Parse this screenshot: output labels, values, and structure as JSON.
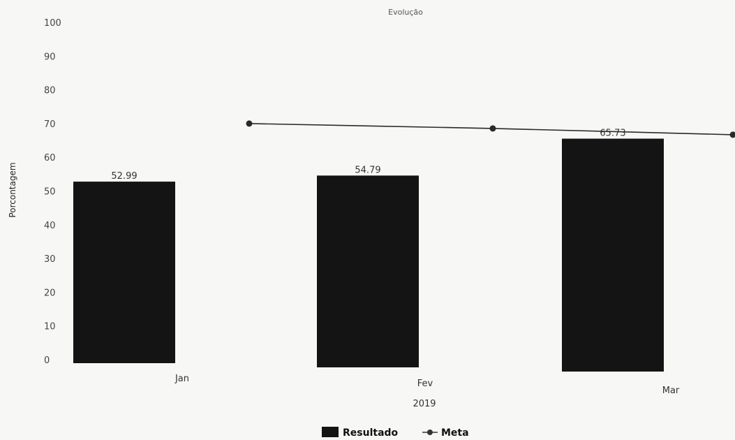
{
  "chart_data": {
    "type": "bar",
    "title": "Evolução",
    "xlabel": "2019",
    "ylabel": "Porcontagem",
    "ylim": [
      0,
      100
    ],
    "yticks": [
      0,
      10,
      20,
      30,
      40,
      50,
      60,
      70,
      80,
      90,
      100
    ],
    "categories": [
      "Jan",
      "Fev",
      "Mar"
    ],
    "series": [
      {
        "name": "Resultado",
        "type": "bar",
        "values": [
          52.99,
          54.79,
          65.73
        ],
        "color": "#141414"
      },
      {
        "name": "Meta",
        "type": "line",
        "values": [
          70,
          70,
          70
        ],
        "color": "#2a2a2a"
      }
    ],
    "data_labels": [
      "52.99",
      "54.79",
      "65.73"
    ],
    "legend": {
      "position": "bottom",
      "items": [
        "Resultado",
        "Meta"
      ]
    },
    "grid": false
  }
}
